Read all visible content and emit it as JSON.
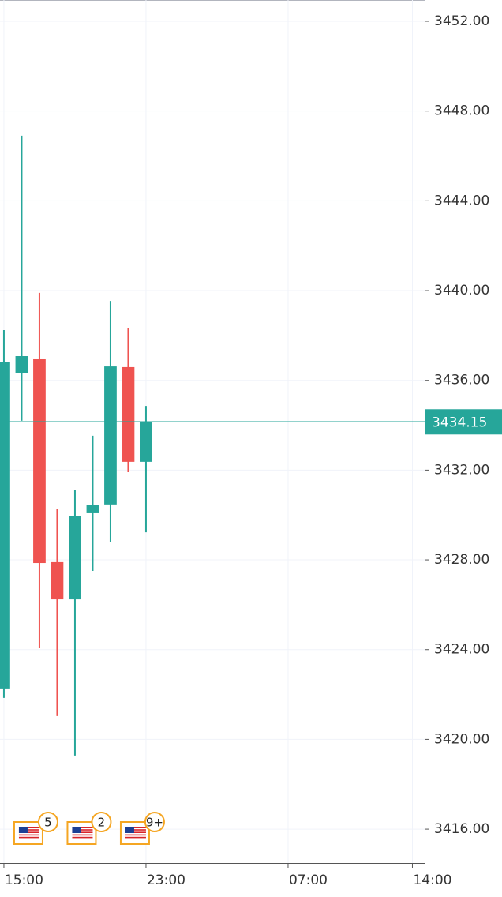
{
  "chart_data": {
    "type": "candlestick",
    "x": [
      15,
      16,
      17,
      18,
      19,
      20,
      21,
      22,
      23
    ],
    "open": [
      3422.27,
      3436.34,
      3436.94,
      3427.9,
      3426.24,
      3430.08,
      3430.47,
      3436.59,
      3432.37
    ],
    "high": [
      3438.24,
      3446.9,
      3439.9,
      3430.29,
      3431.1,
      3433.53,
      3439.54,
      3438.31,
      3434.86
    ],
    "low": [
      3421.85,
      3434.2,
      3424.06,
      3421.04,
      3419.28,
      3427.51,
      3428.81,
      3431.91,
      3429.23
    ],
    "close": [
      3436.83,
      3437.08,
      3427.86,
      3426.24,
      3429.97,
      3430.43,
      3436.62,
      3432.37,
      3434.15
    ],
    "up_color": "#26a69a",
    "down_color": "#ef5350",
    "xlim": [
      14.78,
      38.69
    ],
    "xticks": [
      {
        "value": 15,
        "label": "15:00"
      },
      {
        "value": 23,
        "label": "23:00"
      },
      {
        "value": 31,
        "label": "07:00"
      },
      {
        "value": 38,
        "label": "14:00"
      }
    ],
    "ylim": [
      3414.49,
      3452.95
    ],
    "yticks": [
      {
        "value": 3416,
        "label": "3416.00"
      },
      {
        "value": 3420,
        "label": "3420.00"
      },
      {
        "value": 3424,
        "label": "3424.00"
      },
      {
        "value": 3428,
        "label": "3428.00"
      },
      {
        "value": 3432,
        "label": "3432.00"
      },
      {
        "value": 3436,
        "label": "3436.00"
      },
      {
        "value": 3440,
        "label": "3440.00"
      },
      {
        "value": 3444,
        "label": "3444.00"
      },
      {
        "value": 3448,
        "label": "3448.00"
      },
      {
        "value": 3452,
        "label": "3452.00"
      }
    ],
    "grid": true,
    "last_price": 3434.15,
    "events": [
      {
        "x": 17,
        "label": "5"
      },
      {
        "x": 20,
        "label": "2"
      },
      {
        "x": 23,
        "label": "9+"
      }
    ]
  }
}
